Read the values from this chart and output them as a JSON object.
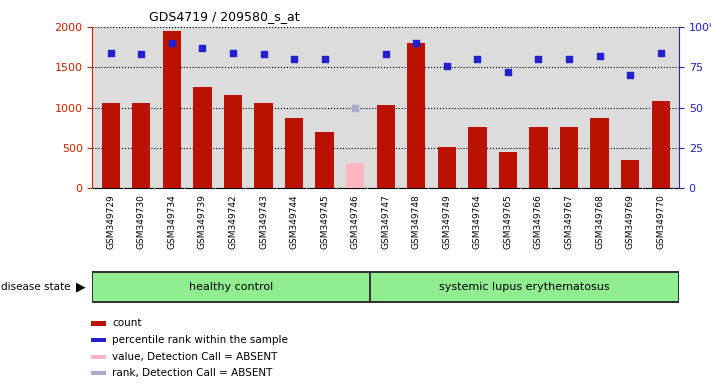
{
  "title": "GDS4719 / 209580_s_at",
  "samples": [
    "GSM349729",
    "GSM349730",
    "GSM349734",
    "GSM349739",
    "GSM349742",
    "GSM349743",
    "GSM349744",
    "GSM349745",
    "GSM349746",
    "GSM349747",
    "GSM349748",
    "GSM349749",
    "GSM349764",
    "GSM349765",
    "GSM349766",
    "GSM349767",
    "GSM349768",
    "GSM349769",
    "GSM349770"
  ],
  "counts": [
    1060,
    1055,
    1950,
    1260,
    1150,
    1055,
    870,
    700,
    0,
    1035,
    1800,
    510,
    760,
    450,
    755,
    755,
    870,
    350,
    1080
  ],
  "absent_counts": [
    0,
    0,
    0,
    0,
    0,
    0,
    0,
    0,
    310,
    0,
    0,
    0,
    0,
    0,
    0,
    0,
    0,
    0,
    0
  ],
  "percentile_ranks": [
    84,
    83,
    90,
    87,
    84,
    83,
    80,
    80,
    0,
    83,
    90,
    76,
    80,
    72,
    80,
    80,
    82,
    70,
    84
  ],
  "absent_ranks": [
    0,
    0,
    0,
    0,
    0,
    0,
    0,
    0,
    50,
    0,
    0,
    0,
    0,
    0,
    0,
    0,
    0,
    0,
    0
  ],
  "is_absent": [
    false,
    false,
    false,
    false,
    false,
    false,
    false,
    false,
    true,
    false,
    false,
    false,
    false,
    false,
    false,
    false,
    false,
    false,
    false
  ],
  "group_labels": [
    "healthy control",
    "systemic lupus erythematosus"
  ],
  "group_healthy_count": 9,
  "ylim_left": [
    0,
    2000
  ],
  "ylim_right": [
    0,
    100
  ],
  "bar_color_normal": "#BB1100",
  "bar_color_absent": "#FFB6C1",
  "dot_color_normal": "#2222CC",
  "dot_color_absent": "#AAAACC",
  "plot_bg_color": "#DCDCDC",
  "xtick_bg_color": "#C8C8C8",
  "group_bg_color": "#90EE90",
  "left_tick_color": "#CC2200",
  "right_tick_color": "#2222CC"
}
